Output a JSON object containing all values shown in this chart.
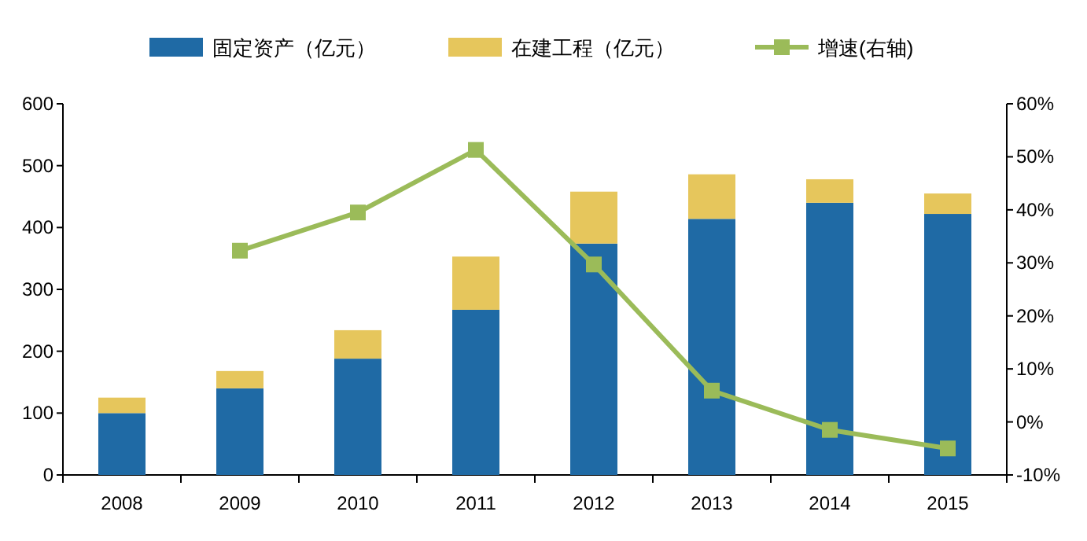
{
  "chart_data": {
    "type": "bar",
    "stacked": true,
    "categories": [
      "2008",
      "2009",
      "2010",
      "2011",
      "2012",
      "2013",
      "2014",
      "2015"
    ],
    "series": [
      {
        "name": "固定资产（亿元）",
        "color": "#1f6aa5",
        "values": [
          100,
          140,
          188,
          267,
          374,
          414,
          440,
          422
        ]
      },
      {
        "name": "在建工程（亿元）",
        "color": "#e6c65c",
        "values": [
          25,
          28,
          46,
          86,
          84,
          72,
          38,
          33
        ]
      },
      {
        "name": "增速(右轴)",
        "type": "line",
        "axis": "y2",
        "color": "#9bbb59",
        "marker": "square",
        "values": [
          null,
          32.3,
          39.5,
          51.3,
          29.7,
          5.9,
          -1.5,
          -5
        ]
      }
    ],
    "ylim": [
      0,
      600
    ],
    "yticks": [
      0,
      100,
      200,
      300,
      400,
      500,
      600
    ],
    "y2lim": [
      -10,
      60
    ],
    "y2ticks": [
      {
        "value": -10,
        "label": "-10%"
      },
      {
        "value": 0,
        "label": "0%"
      },
      {
        "value": 10,
        "label": "10%"
      },
      {
        "value": 20,
        "label": "20%"
      },
      {
        "value": 30,
        "label": "30%"
      },
      {
        "value": 40,
        "label": "40%"
      },
      {
        "value": 50,
        "label": "50%"
      },
      {
        "value": 60,
        "label": "60%"
      }
    ],
    "legend": "top",
    "grid": false
  }
}
